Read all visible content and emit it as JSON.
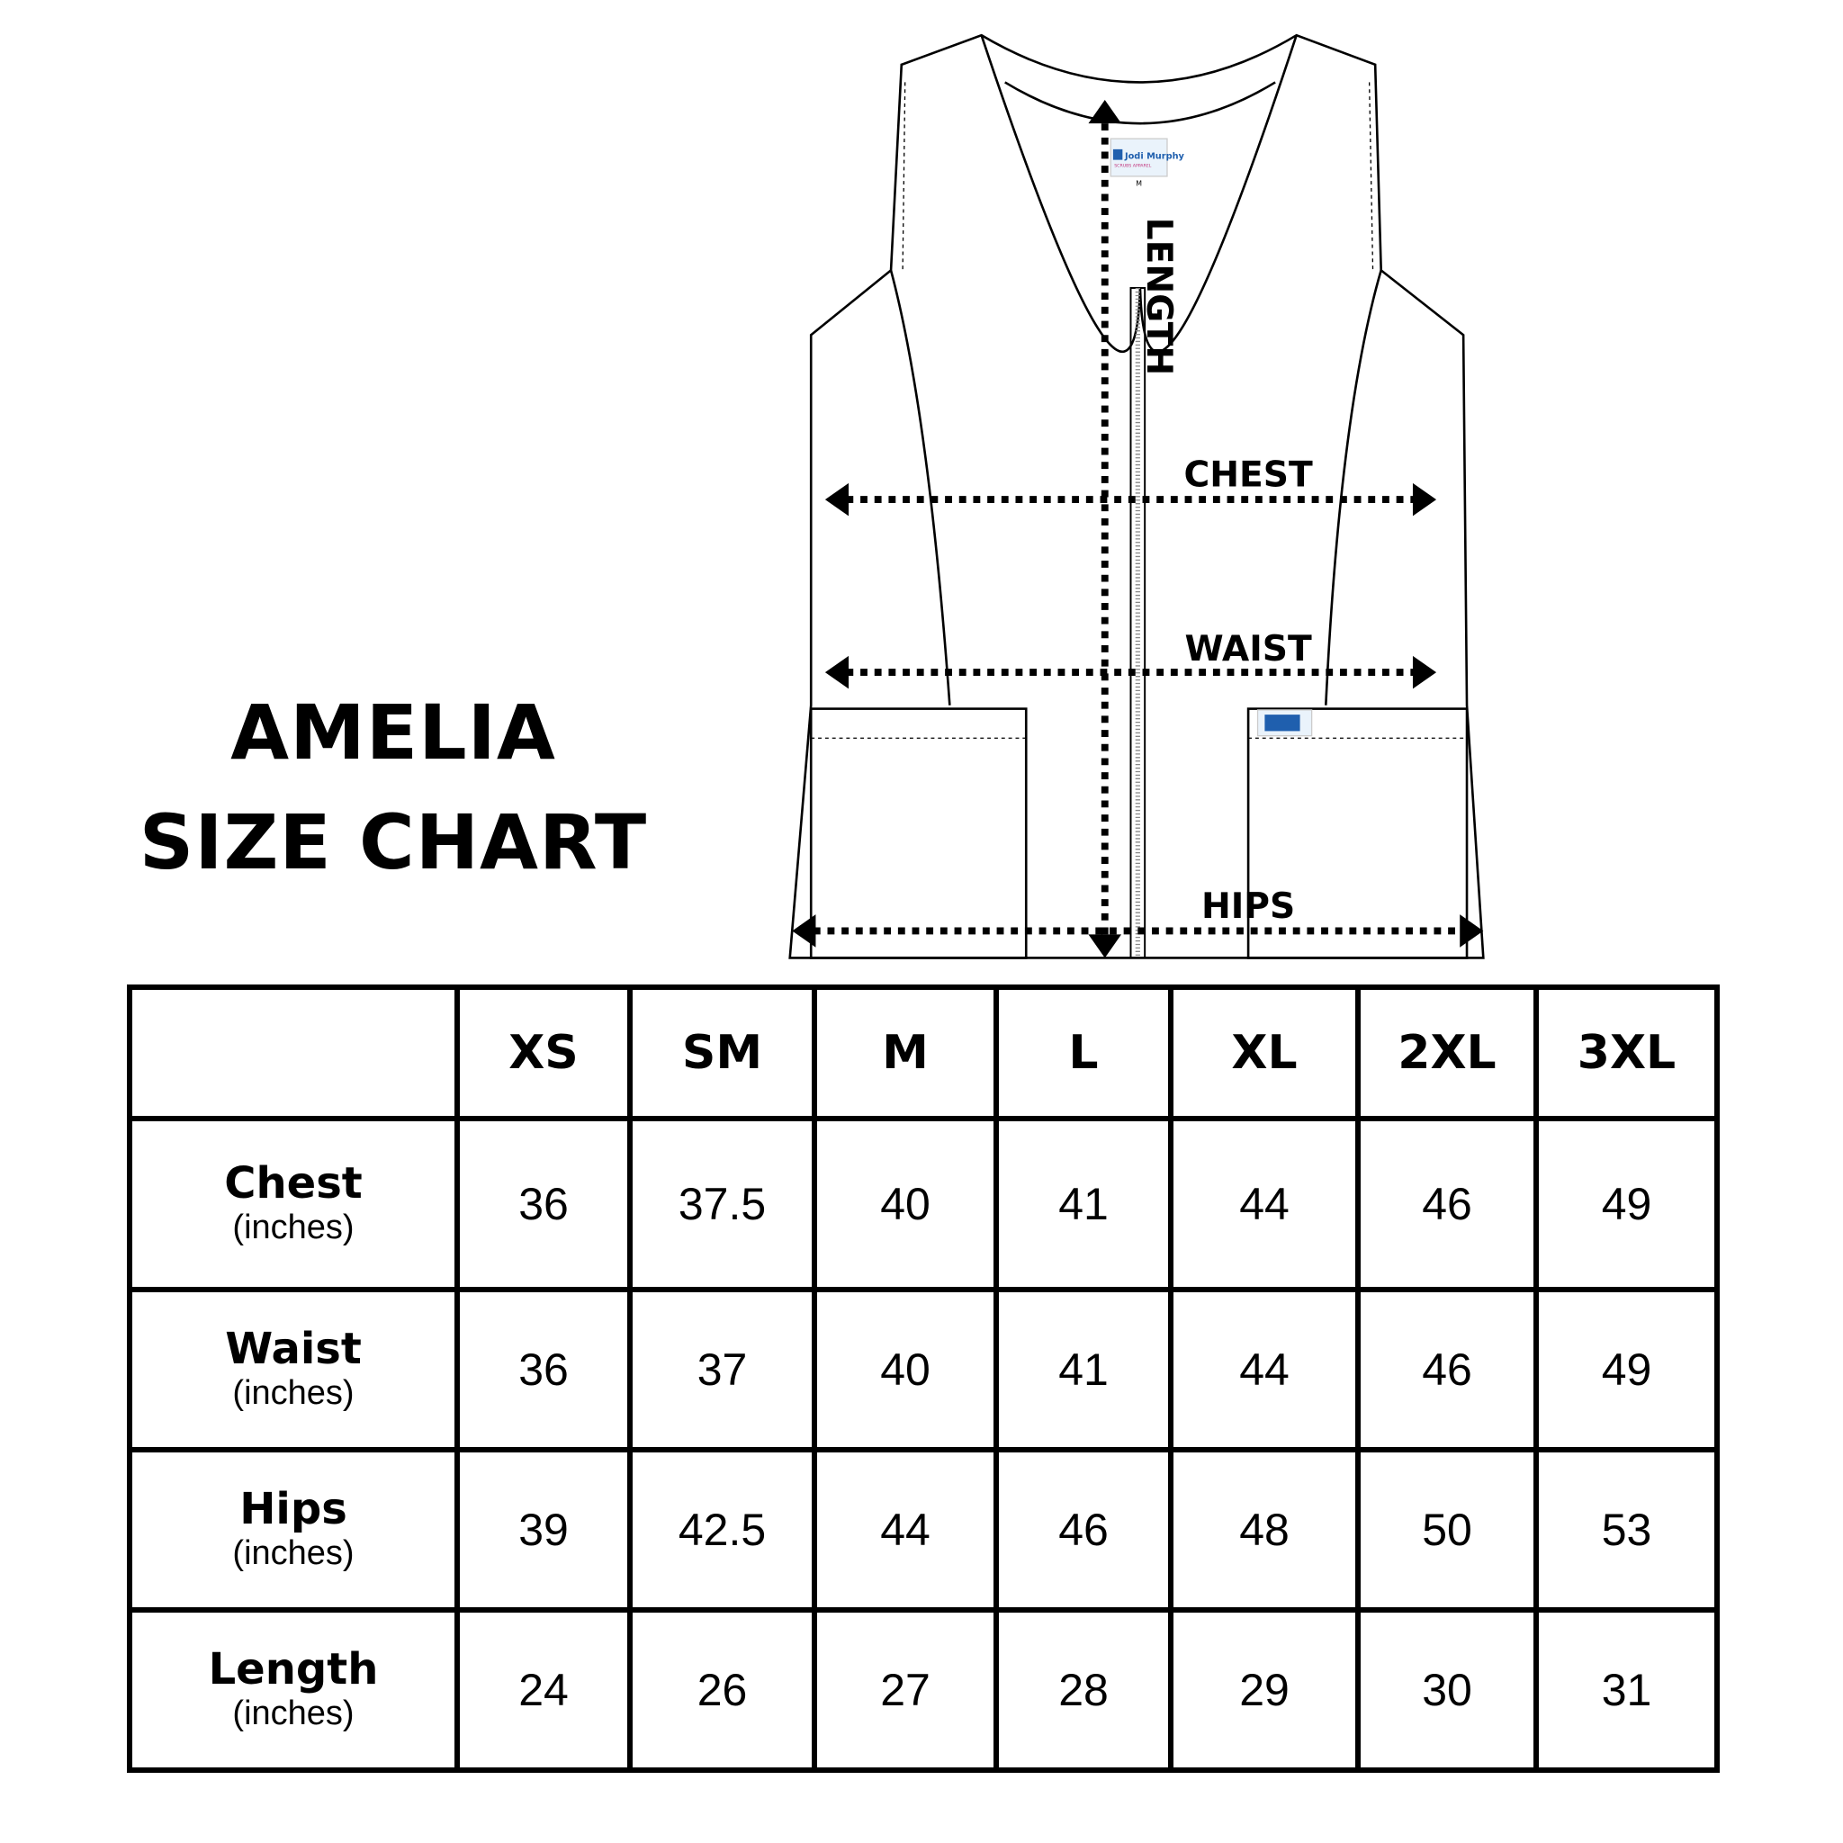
{
  "title": {
    "line1": "AMELIA",
    "line2": "SIZE CHART"
  },
  "diagram": {
    "labels": {
      "length": "LENGTH",
      "chest": "CHEST",
      "waist": "WAIST",
      "hips": "HIPS"
    },
    "brand_tag": {
      "brand": "Jodi Murphy",
      "tagline": "SCRUBS APPAREL",
      "size": "M"
    },
    "brand_color": "#1f5fae"
  },
  "table": {
    "headers": [
      "",
      "XS",
      "SM",
      "M",
      "L",
      "XL",
      "2XL",
      "3XL"
    ],
    "rows": [
      {
        "name": "Chest",
        "unit": "(inches)",
        "values": [
          "36",
          "37.5",
          "40",
          "41",
          "44",
          "46",
          "49"
        ]
      },
      {
        "name": "Waist",
        "unit": "(inches)",
        "values": [
          "36",
          "37",
          "40",
          "41",
          "44",
          "46",
          "49"
        ]
      },
      {
        "name": "Hips",
        "unit": "(inches)",
        "values": [
          "39",
          "42.5",
          "44",
          "46",
          "48",
          "50",
          "53"
        ]
      },
      {
        "name": "Length",
        "unit": "(inches)",
        "values": [
          "24",
          "26",
          "27",
          "28",
          "29",
          "30",
          "31"
        ]
      }
    ]
  }
}
